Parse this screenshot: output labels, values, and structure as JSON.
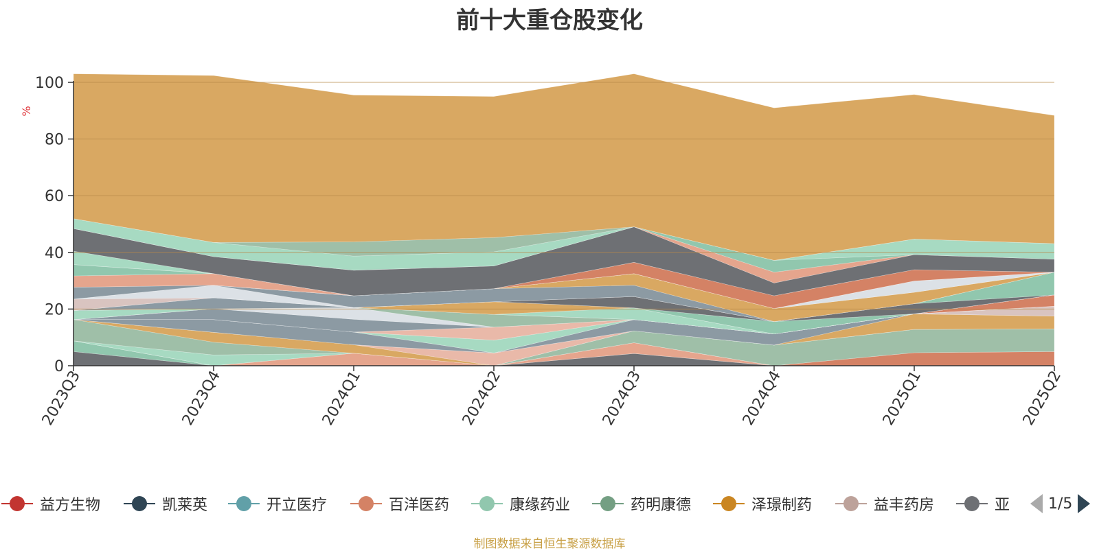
{
  "chart_data": {
    "type": "area",
    "title": "前十大重仓股变化",
    "ylabel": "%",
    "ylim": [
      0,
      100
    ],
    "yticks": [
      0,
      20,
      40,
      60,
      80,
      100
    ],
    "grid": true,
    "categories": [
      "2023Q3",
      "2023Q4",
      "2024Q1",
      "2024Q2",
      "2024Q3",
      "2024Q4",
      "2025Q1",
      "2025Q2"
    ],
    "series": [
      {
        "color": "#6e7074",
        "values": [
          5.0,
          0.0,
          0.0,
          0.0,
          4.3,
          0.0,
          0.0,
          0.0
        ]
      },
      {
        "color": "#91c7ae",
        "values": [
          3.8,
          0.0,
          0.0,
          0.0,
          0.0,
          0.0,
          0.0,
          0.0
        ]
      },
      {
        "color": "#e5a58d",
        "values": [
          0.0,
          0.0,
          4.4,
          0.0,
          3.8,
          0.0,
          0.0,
          0.0
        ]
      },
      {
        "color": "#d48265",
        "values": [
          0.0,
          0.0,
          0.0,
          0.0,
          0.0,
          0.0,
          4.6,
          5.0
        ]
      },
      {
        "color": "#a7dac2",
        "values": [
          0.0,
          3.8,
          0.0,
          0.0,
          0.0,
          0.0,
          0.0,
          0.0
        ]
      },
      {
        "color": "#9fbfa8",
        "values": [
          7.5,
          4.5,
          0.0,
          0.0,
          4.2,
          7.3,
          8.2,
          8.0
        ]
      },
      {
        "color": "#d9a862",
        "values": [
          0.0,
          3.5,
          3.0,
          0.0,
          0.0,
          0.0,
          0.0,
          0.0
        ]
      },
      {
        "color": "#e9b9a9",
        "values": [
          0.0,
          0.0,
          0.0,
          4.5,
          0.0,
          0.0,
          0.0,
          0.0
        ]
      },
      {
        "color": "#d9a862",
        "values": [
          0.0,
          0.0,
          0.0,
          0.0,
          0.0,
          0.0,
          5.5,
          4.5
        ]
      },
      {
        "color": "#8c9aa3",
        "values": [
          0.0,
          4.5,
          4.5,
          0.0,
          4.0,
          3.9,
          0.0,
          0.0
        ]
      },
      {
        "color": "#d9c4c0",
        "values": [
          0.0,
          0.0,
          0.0,
          0.0,
          0.0,
          0.0,
          0.0,
          3.5
        ]
      },
      {
        "color": "#a7dac2",
        "values": [
          0.0,
          0.0,
          0.0,
          4.5,
          0.0,
          0.0,
          0.0,
          0.0
        ]
      },
      {
        "color": "#e9b9a9",
        "values": [
          0.0,
          0.0,
          0.0,
          4.6,
          0.0,
          0.0,
          0.0,
          0.0
        ]
      },
      {
        "color": "#8c9aa3",
        "values": [
          0.0,
          3.8,
          4.5,
          0.0,
          0.0,
          0.0,
          0.0,
          0.0
        ]
      },
      {
        "color": "#dce1e6",
        "values": [
          0.0,
          0.0,
          4.1,
          0.0,
          0.0,
          0.0,
          0.0,
          0.0
        ]
      },
      {
        "color": "#9fbfa8",
        "values": [
          0.0,
          0.0,
          0.0,
          4.5,
          0.0,
          0.0,
          0.0,
          0.0
        ]
      },
      {
        "color": "#d48265",
        "values": [
          0.0,
          0.0,
          0.0,
          0.0,
          0.0,
          0.0,
          0.0,
          4.0
        ]
      },
      {
        "color": "#a7dac2",
        "values": [
          3.2,
          0.0,
          0.0,
          0.0,
          4.1,
          0.0,
          0.0,
          0.0
        ]
      },
      {
        "color": "#d9a862",
        "values": [
          0.0,
          0.0,
          0.0,
          4.5,
          0.0,
          0.0,
          0.0,
          0.0
        ]
      },
      {
        "color": "#91c7ae",
        "values": [
          0.0,
          0.0,
          0.0,
          0.0,
          0.0,
          4.4,
          0.0,
          0.0
        ]
      },
      {
        "color": "#8c9aa3",
        "values": [
          0.0,
          3.9,
          0.0,
          0.0,
          0.0,
          0.0,
          0.0,
          0.0
        ]
      },
      {
        "color": "#6e7074",
        "values": [
          0.0,
          0.0,
          0.0,
          0.0,
          4.0,
          0.0,
          3.6,
          0.0
        ]
      },
      {
        "color": "#91c7ae",
        "values": [
          0.0,
          0.0,
          0.0,
          0.0,
          0.0,
          0.0,
          0.0,
          8.0
        ]
      },
      {
        "color": "#d9c4c0",
        "values": [
          4.0,
          0.0,
          0.0,
          0.0,
          0.0,
          0.0,
          0.0,
          0.0
        ]
      },
      {
        "color": "#dce1e6",
        "values": [
          0.0,
          4.4,
          0.0,
          0.0,
          0.0,
          0.0,
          0.0,
          0.0
        ]
      },
      {
        "color": "#8c9aa3",
        "values": [
          0.0,
          0.0,
          4.2,
          4.6,
          4.0,
          0.0,
          0.0,
          0.0
        ]
      },
      {
        "color": "#d9a862",
        "values": [
          0.0,
          0.0,
          0.0,
          0.0,
          4.1,
          4.6,
          4.0,
          0.0
        ]
      },
      {
        "color": "#8c9aa3",
        "values": [
          4.2,
          0.0,
          0.0,
          0.0,
          0.0,
          0.0,
          0.0,
          0.0
        ]
      },
      {
        "color": "#dce1e6",
        "values": [
          0.0,
          0.0,
          0.0,
          0.0,
          0.0,
          0.0,
          4.0,
          0.0
        ]
      },
      {
        "color": "#e5a58d",
        "values": [
          4.0,
          4.1,
          0.0,
          0.0,
          0.0,
          0.0,
          0.0,
          0.0
        ]
      },
      {
        "color": "#91c7ae",
        "values": [
          4.0,
          0.0,
          0.0,
          0.0,
          0.0,
          0.0,
          0.0,
          0.0
        ]
      },
      {
        "color": "#d48265",
        "values": [
          0.0,
          0.0,
          0.0,
          0.0,
          4.0,
          4.5,
          4.0,
          0.0
        ]
      },
      {
        "color": "#a7dac2",
        "values": [
          4.7,
          0.0,
          0.0,
          0.0,
          0.0,
          0.0,
          0.0,
          0.0
        ]
      },
      {
        "color": "#6e7074",
        "values": [
          8.0,
          6.0,
          9.0,
          8.0,
          12.5,
          4.5,
          5.3,
          4.6
        ]
      },
      {
        "color": "#e5a58d",
        "values": [
          0.0,
          0.0,
          0.0,
          0.0,
          0.0,
          3.8,
          0.0,
          0.0
        ]
      },
      {
        "color": "#91c7ae",
        "values": [
          0.0,
          0.0,
          0.0,
          0.0,
          0.0,
          4.2,
          0.0,
          0.0
        ]
      },
      {
        "color": "#a7dac2",
        "values": [
          3.5,
          5.0,
          5.0,
          5.0,
          0.0,
          0.0,
          5.5,
          5.5
        ]
      },
      {
        "color": "#9fbfa8",
        "values": [
          0.0,
          0.0,
          5.0,
          5.0,
          0.0,
          0.0,
          0.0,
          0.0
        ]
      },
      {
        "color": "#d9a862",
        "values": [
          51.1,
          58.9,
          51.8,
          49.8,
          54.0,
          53.8,
          51.0,
          45.2
        ]
      }
    ]
  },
  "legend": {
    "items": [
      {
        "label": "益方生物",
        "color": "#c23531"
      },
      {
        "label": "凯莱英",
        "color": "#2f4554"
      },
      {
        "label": "开立医疗",
        "color": "#61a0a8"
      },
      {
        "label": "百洋医药",
        "color": "#d48265"
      },
      {
        "label": "康缘药业",
        "color": "#91c7ae"
      },
      {
        "label": "药明康德",
        "color": "#749f83"
      },
      {
        "label": "泽璟制药",
        "color": "#ca8622"
      },
      {
        "label": "益丰药房",
        "color": "#bda29a"
      },
      {
        "label": "亚虹医药",
        "color": "#6e7074"
      }
    ],
    "page": "1/5"
  },
  "footer": "制图数据来自恒生聚源数据库"
}
